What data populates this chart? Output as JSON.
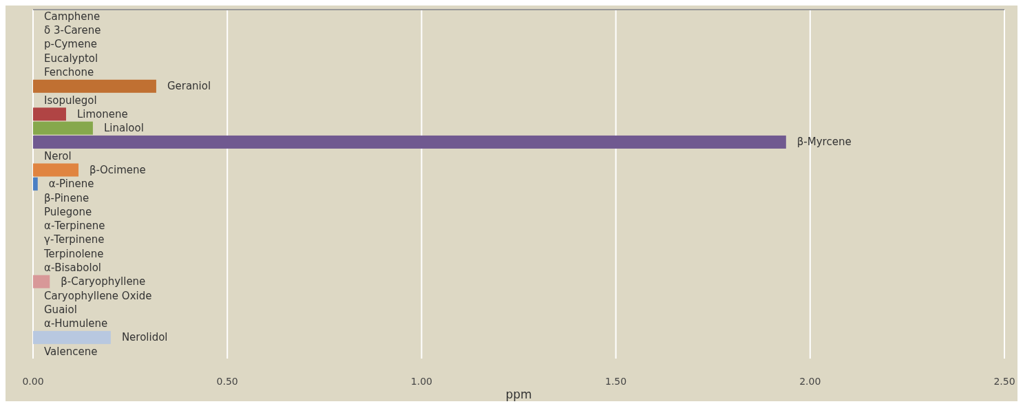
{
  "chart_data": {
    "type": "bar",
    "orientation": "horizontal",
    "xlabel": "ppm",
    "categories": [
      "Camphene",
      "δ 3-Carene",
      "p-Cymene",
      "Eucalyptol",
      "Fenchone",
      "Geraniol",
      "Isopulegol",
      "Limonene",
      "Linalool",
      "β-Myrcene",
      "Nerol",
      "β-Ocimene",
      "α-Pinene",
      "β-Pinene",
      "Pulegone",
      "α-Terpinene",
      "γ-Terpinene",
      "Terpinolene",
      "α-Bisabolol",
      "β-Caryophyllene",
      "Caryophyllene Oxide",
      "Guaiol",
      "α-Humulene",
      "Nerolidol",
      "Valencene"
    ],
    "values": [
      0,
      0,
      0,
      0,
      0,
      0.317,
      0,
      0.085,
      0.154,
      1.938,
      0,
      0.117,
      0.012,
      0,
      0,
      0,
      0,
      0,
      0,
      0.043,
      0,
      0,
      0,
      0.2,
      0
    ],
    "colors": [
      "#c07032",
      "#c07032",
      "#c07032",
      "#c07032",
      "#c07032",
      "#c07032",
      "#c07032",
      "#b04444",
      "#86a84c",
      "#705990",
      "#e08440",
      "#e08440",
      "#4a7fc4",
      "#4a7fc4",
      "#4a7fc4",
      "#4a7fc4",
      "#4a7fc4",
      "#4a7fc4",
      "#d89898",
      "#d89898",
      "#d89898",
      "#d89898",
      "#d89898",
      "#b8c8e0",
      "#b8c8e0"
    ],
    "xlim": [
      0,
      2.5
    ],
    "xticks": [
      {
        "value": 0,
        "label": "0.00"
      },
      {
        "value": 0.5,
        "label": "0.50"
      },
      {
        "value": 1,
        "label": "1.00"
      },
      {
        "value": 1.5,
        "label": "1.50"
      },
      {
        "value": 2,
        "label": "2.00"
      },
      {
        "value": 2.5,
        "label": "2.50"
      }
    ],
    "grid": "x"
  }
}
